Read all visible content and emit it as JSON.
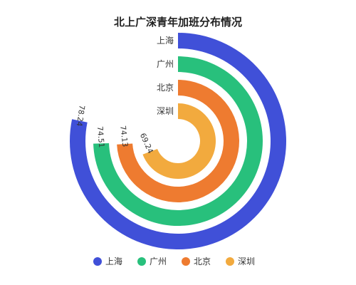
{
  "chart_data": {
    "type": "bar",
    "subtype": "polar-radial-bar",
    "title": "北上广深青年加班分布情况",
    "categories": [
      "上海",
      "广州",
      "北京",
      "深圳"
    ],
    "values": [
      78.24,
      74.51,
      74.13,
      69.24
    ],
    "angle_max": 100,
    "colors": [
      "#4050d8",
      "#28c07c",
      "#ee7b30",
      "#f2aa3e"
    ],
    "legend": {
      "position": "bottom",
      "items": [
        "上海",
        "广州",
        "北京",
        "深圳"
      ]
    }
  }
}
